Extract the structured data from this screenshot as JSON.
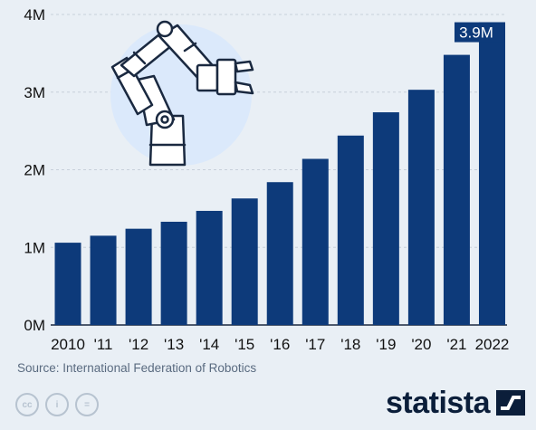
{
  "chart_data": {
    "type": "bar",
    "categories": [
      "2010",
      "'11",
      "'12",
      "'13",
      "'14",
      "'15",
      "'16",
      "'17",
      "'18",
      "'19",
      "'20",
      "'21",
      "2022"
    ],
    "values": [
      1.06,
      1.15,
      1.24,
      1.33,
      1.47,
      1.63,
      1.84,
      2.14,
      2.44,
      2.74,
      3.03,
      3.48,
      3.9
    ],
    "yticks": [
      0,
      1,
      2,
      3,
      4
    ],
    "ytick_labels": [
      "0M",
      "1M",
      "2M",
      "3M",
      "4M"
    ],
    "ylim": [
      0,
      4
    ],
    "title": "",
    "xlabel": "",
    "ylabel": "",
    "highlight_label": "3.9M",
    "grid": true,
    "bar_color": "#0d3a7a"
  },
  "source": "Source: International Federation of Robotics",
  "license_icons": [
    "cc",
    "i",
    "="
  ],
  "brand": {
    "name": "statista",
    "color": "#0b1e3a"
  },
  "illustration": {
    "icon": "robot-arm-icon",
    "bg_color": "#dbe9fb"
  },
  "colors": {
    "background": "#e9eff5",
    "bar": "#0d3a7a",
    "grid": "#c7d0da"
  }
}
